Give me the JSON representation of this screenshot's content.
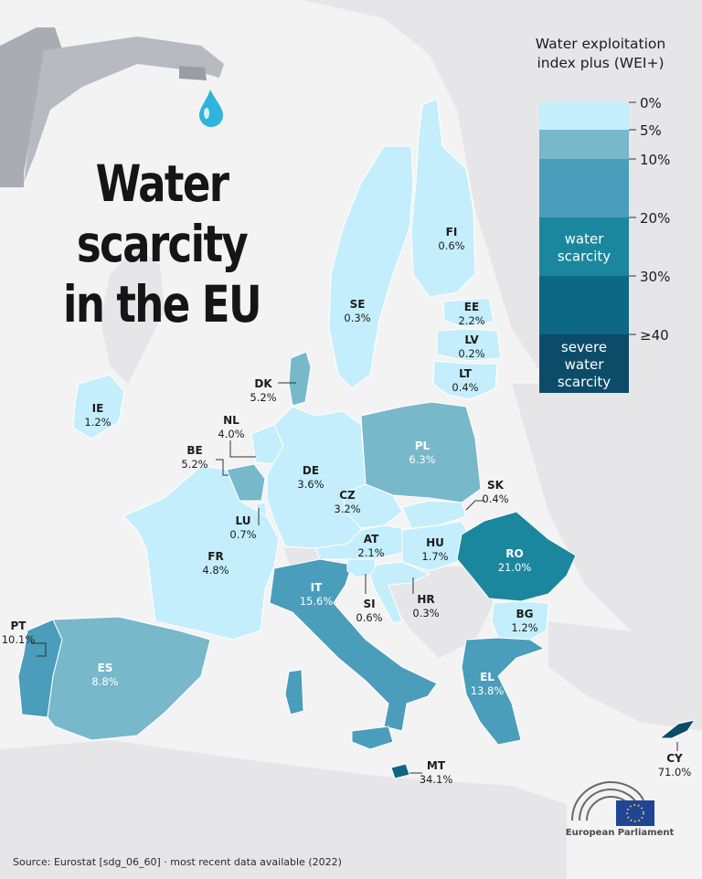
{
  "title_lines": [
    "Water",
    "scarcity",
    "in the EU"
  ],
  "legend": {
    "title_lines": [
      "Water exploitation",
      "index plus (WEI+)"
    ],
    "ticks": [
      "0%",
      "5%",
      "10%",
      "20%",
      "30%",
      "≥40"
    ],
    "bands": [
      {
        "range": "0–5%",
        "color": "#c4eefb",
        "label": []
      },
      {
        "range": "5–10%",
        "color": "#77b8cb",
        "label": []
      },
      {
        "range": "10–20%",
        "color": "#4a9dbb",
        "label": []
      },
      {
        "range": "20–30%",
        "color": "#1a879e",
        "label": [
          "water",
          "scarcity"
        ]
      },
      {
        "range": "30–40%",
        "color": "#0d6885",
        "label": []
      },
      {
        "range": "≥40%",
        "color": "#0c4c68",
        "label": [
          "severe",
          "water",
          "scarcity"
        ]
      }
    ]
  },
  "countries": [
    {
      "code": "FI",
      "value": "0.6%",
      "wei": 0.6
    },
    {
      "code": "SE",
      "value": "0.3%",
      "wei": 0.3
    },
    {
      "code": "EE",
      "value": "2.2%",
      "wei": 2.2
    },
    {
      "code": "LV",
      "value": "0.2%",
      "wei": 0.2
    },
    {
      "code": "LT",
      "value": "0.4%",
      "wei": 0.4
    },
    {
      "code": "DK",
      "value": "5.2%",
      "wei": 5.2
    },
    {
      "code": "IE",
      "value": "1.2%",
      "wei": 1.2
    },
    {
      "code": "NL",
      "value": "4.0%",
      "wei": 4.0
    },
    {
      "code": "BE",
      "value": "5.2%",
      "wei": 5.2
    },
    {
      "code": "DE",
      "value": "3.6%",
      "wei": 3.6
    },
    {
      "code": "PL",
      "value": "6.3%",
      "wei": 6.3
    },
    {
      "code": "CZ",
      "value": "3.2%",
      "wei": 3.2
    },
    {
      "code": "SK",
      "value": "0.4%",
      "wei": 0.4
    },
    {
      "code": "LU",
      "value": "0.7%",
      "wei": 0.7
    },
    {
      "code": "AT",
      "value": "2.1%",
      "wei": 2.1
    },
    {
      "code": "HU",
      "value": "1.7%",
      "wei": 1.7
    },
    {
      "code": "RO",
      "value": "21.0%",
      "wei": 21.0
    },
    {
      "code": "FR",
      "value": "4.8%",
      "wei": 4.8
    },
    {
      "code": "IT",
      "value": "15.6%",
      "wei": 15.6
    },
    {
      "code": "SI",
      "value": "0.6%",
      "wei": 0.6
    },
    {
      "code": "HR",
      "value": "0.3%",
      "wei": 0.3
    },
    {
      "code": "BG",
      "value": "1.2%",
      "wei": 1.2
    },
    {
      "code": "PT",
      "value": "10.1%",
      "wei": 10.1
    },
    {
      "code": "ES",
      "value": "8.8%",
      "wei": 8.8
    },
    {
      "code": "EL",
      "value": "13.8%",
      "wei": 13.8
    },
    {
      "code": "CY",
      "value": "71.0%",
      "wei": 71.0
    },
    {
      "code": "MT",
      "value": "34.1%",
      "wei": 34.1
    }
  ],
  "source": "Source: Eurostat [sdg_06_60] · most recent data available (2022)",
  "logo_text": "European Parliament",
  "colors": {
    "background": "#f3f3f4",
    "land_outside_eu": "#e6e6e8",
    "faucet": "#a9acb3",
    "water_drop": "#2fb4dd"
  }
}
